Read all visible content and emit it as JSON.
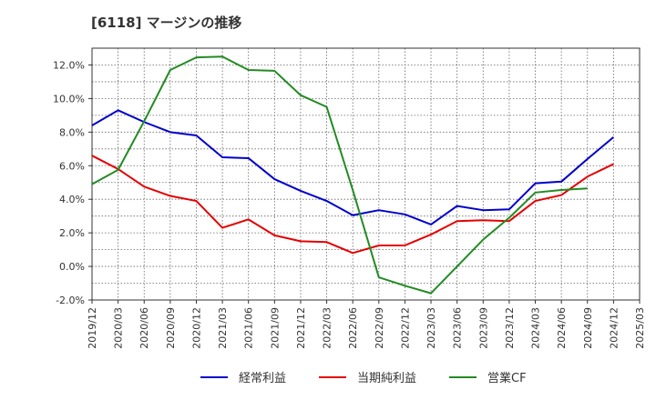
{
  "title": "[6118]  マージンの推移",
  "chart_data": {
    "type": "line",
    "x": [
      "2019/12",
      "2020/03",
      "2020/06",
      "2020/09",
      "2020/12",
      "2021/03",
      "2021/06",
      "2021/09",
      "2021/12",
      "2022/03",
      "2022/06",
      "2022/09",
      "2022/12",
      "2023/03",
      "2023/06",
      "2023/09",
      "2023/12",
      "2024/03",
      "2024/06",
      "2024/09",
      "2024/12",
      "2025/03"
    ],
    "ylim": [
      -2,
      13
    ],
    "yticks": [
      -2,
      0,
      2,
      4,
      6,
      8,
      10,
      12
    ],
    "ytick_labels": [
      "-2.0%",
      "0.0%",
      "2.0%",
      "4.0%",
      "6.0%",
      "8.0%",
      "10.0%",
      "12.0%"
    ],
    "grid": true,
    "legend_position": "bottom",
    "series": [
      {
        "name": "経常利益",
        "color": "#0000cc",
        "values": [
          8.4,
          9.3,
          8.6,
          8.0,
          7.8,
          6.5,
          6.45,
          5.2,
          4.5,
          3.9,
          3.05,
          3.35,
          3.1,
          2.5,
          3.6,
          3.35,
          3.4,
          4.95,
          5.05,
          6.4,
          7.7,
          null
        ]
      },
      {
        "name": "当期純利益",
        "color": "#e60000",
        "values": [
          6.6,
          5.8,
          4.75,
          4.2,
          3.9,
          2.3,
          2.8,
          1.85,
          1.5,
          1.45,
          0.8,
          1.25,
          1.25,
          1.9,
          2.7,
          2.75,
          2.7,
          3.9,
          4.25,
          5.35,
          6.1,
          null
        ]
      },
      {
        "name": "営業CF",
        "color": "#228b22",
        "values": [
          4.9,
          5.75,
          8.65,
          11.7,
          12.45,
          12.5,
          11.7,
          11.65,
          10.2,
          9.5,
          4.55,
          -0.65,
          -1.15,
          -1.6,
          0.0,
          1.6,
          2.9,
          4.4,
          4.55,
          4.65,
          null,
          null
        ]
      }
    ]
  }
}
